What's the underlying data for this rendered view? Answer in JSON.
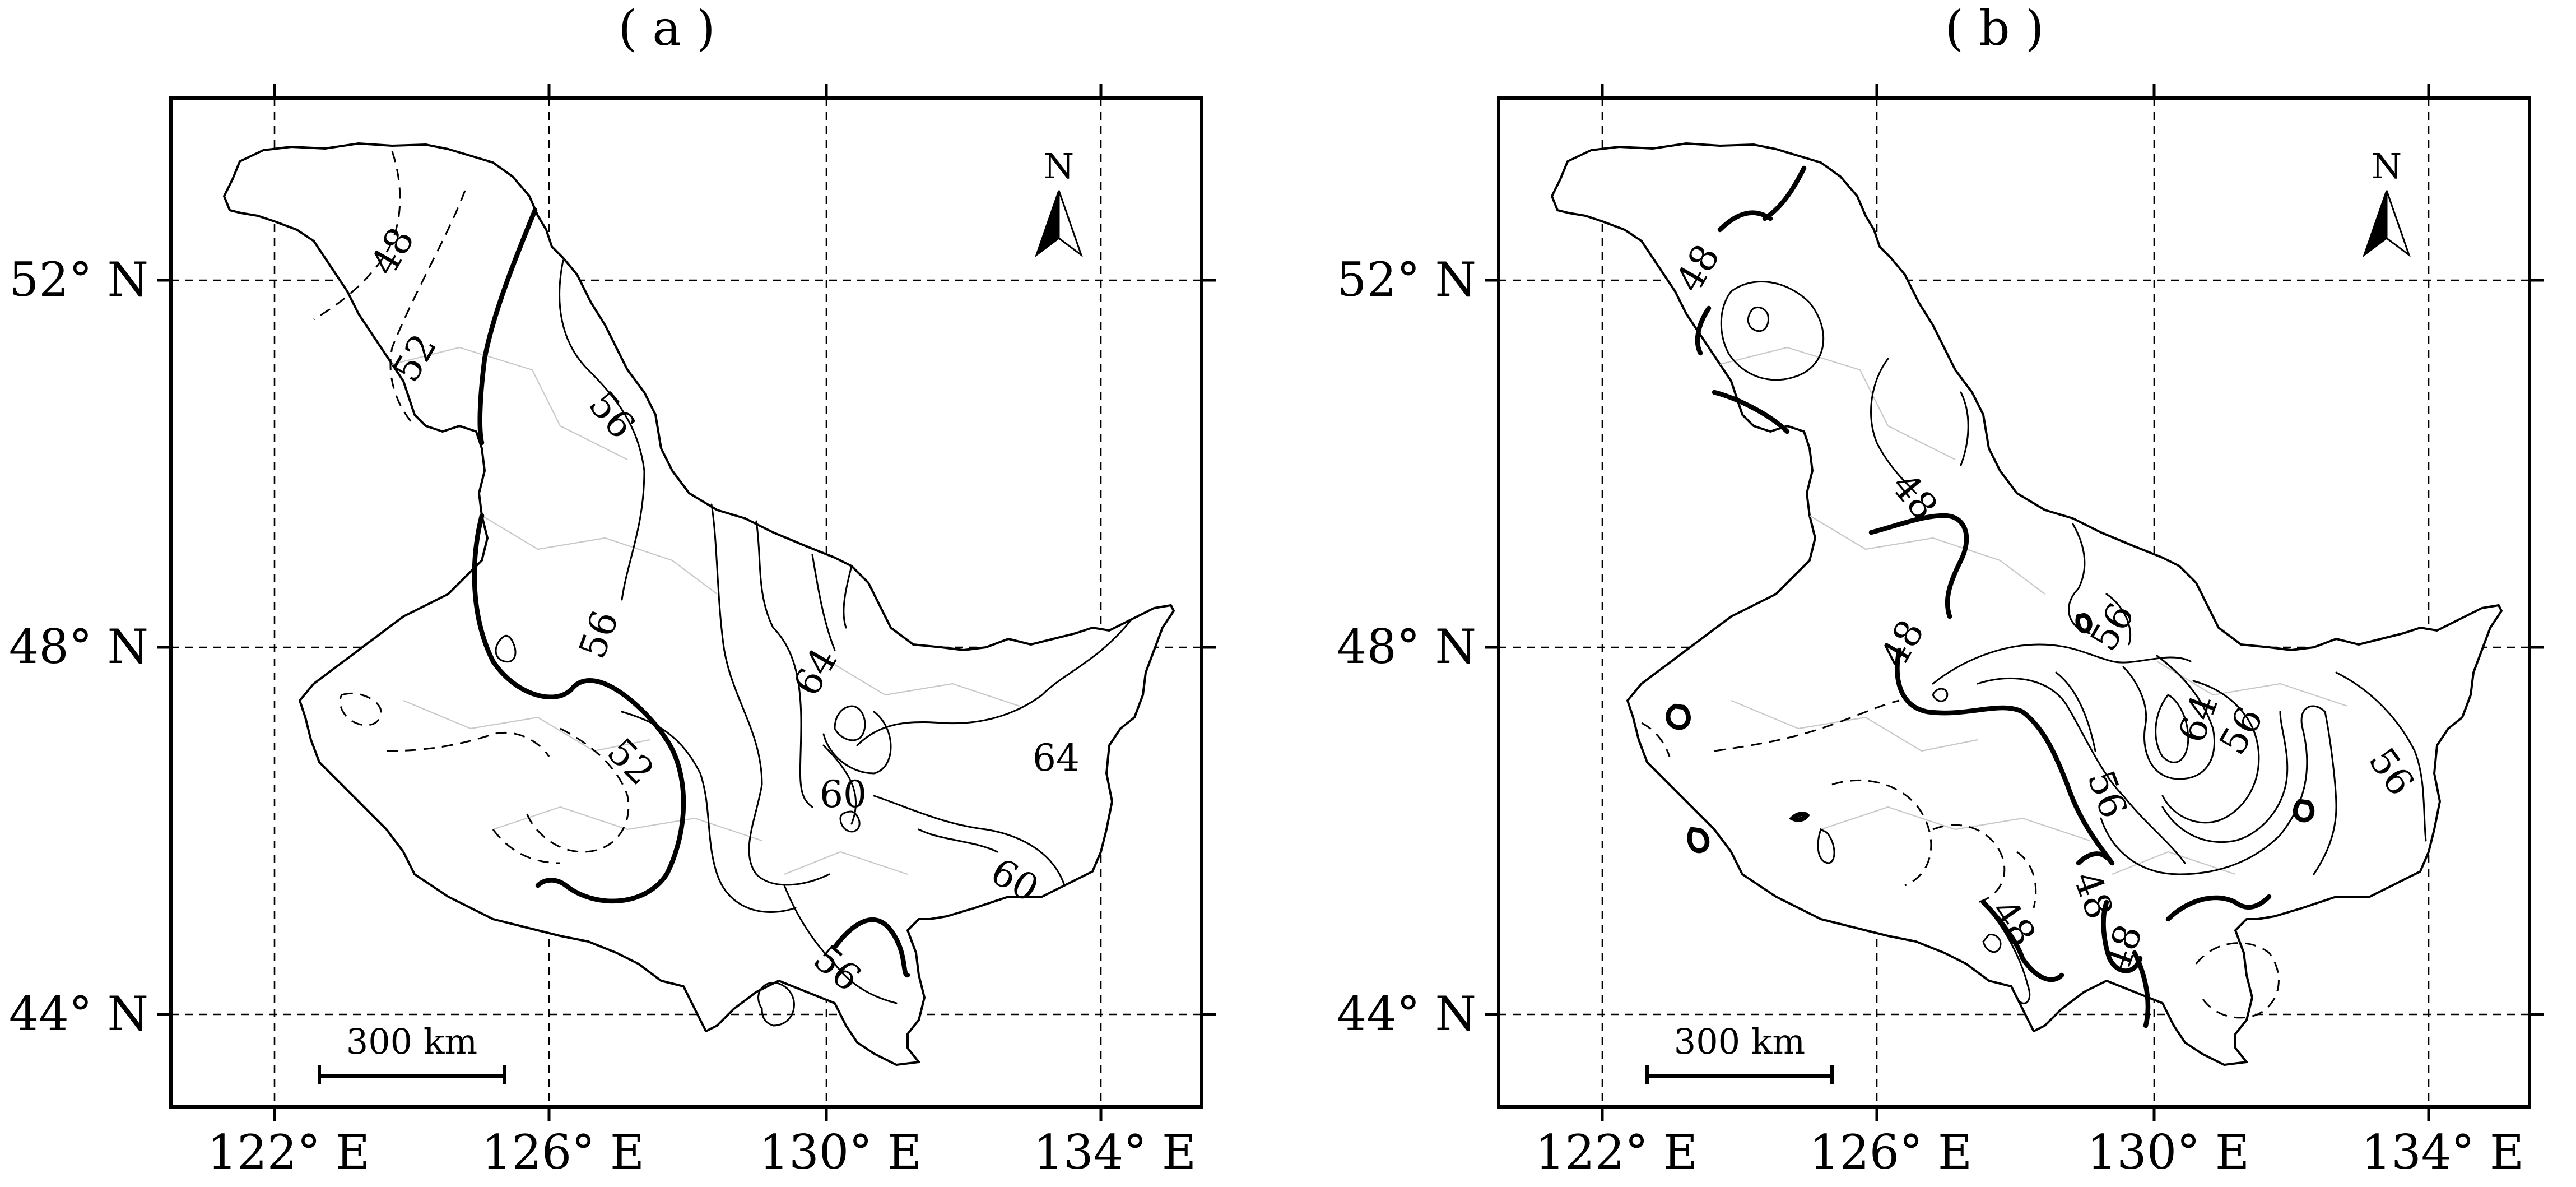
{
  "panels": [
    {
      "label": "( a )",
      "contour_labels": [
        "48",
        "52",
        "56",
        "56",
        "52",
        "64",
        "64",
        "60",
        "60",
        "56"
      ],
      "north_label": "N",
      "scale_label": "300 km"
    },
    {
      "label": "( b )",
      "contour_labels": [
        "48",
        "48",
        "48",
        "56",
        "64",
        "56",
        "56",
        "56",
        "48",
        "48",
        "48"
      ],
      "north_label": "N",
      "scale_label": "300 km"
    }
  ],
  "axes": {
    "longitude_ticks": [
      "122° E",
      "126° E",
      "130° E",
      "134° E"
    ],
    "latitude_ticks": [
      "52° N",
      "48° N",
      "44° N"
    ],
    "longitude_values": [
      122,
      126,
      130,
      134
    ],
    "latitude_values": [
      52,
      48,
      44
    ]
  },
  "style": {
    "line_color": "#000000",
    "county_line_color": "#c8c8c8",
    "background": "#ffffff"
  }
}
